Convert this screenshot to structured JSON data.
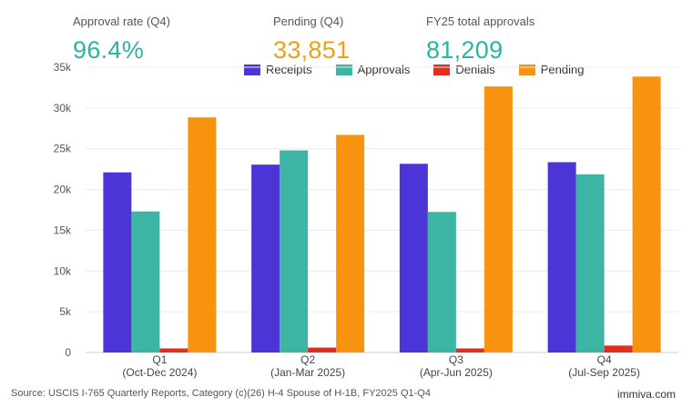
{
  "kpis": [
    {
      "label": "Approval rate (Q4)",
      "value": "96.4%",
      "color": "#2bb5a2"
    },
    {
      "label": "Pending (Q4)",
      "value": "33,851",
      "color": "#f29f14"
    },
    {
      "label": "FY25 total approvals",
      "value": "81,209",
      "color": "#2bb5a2"
    }
  ],
  "chart_data": {
    "type": "bar",
    "categories": [
      {
        "line1": "Q1",
        "line2": "(Oct-Dec 2024)"
      },
      {
        "line1": "Q2",
        "line2": "(Jan-Mar 2025)"
      },
      {
        "line1": "Q3",
        "line2": "(Apr-Jun 2025)"
      },
      {
        "line1": "Q4",
        "line2": "(Jul-Sep 2025)"
      }
    ],
    "series": [
      {
        "name": "Receipts",
        "color": "#4b35d6",
        "values": [
          22100,
          23050,
          23150,
          23350
        ]
      },
      {
        "name": "Approvals",
        "color": "#3db5a4",
        "values": [
          17300,
          24800,
          17250,
          21850
        ]
      },
      {
        "name": "Denials",
        "color": "#e32d1f",
        "values": [
          500,
          600,
          500,
          850
        ]
      },
      {
        "name": "Pending",
        "color": "#f7930f",
        "values": [
          28850,
          26700,
          32650,
          33851
        ]
      }
    ],
    "ylim": [
      0,
      35000
    ],
    "yticks": [
      0,
      5000,
      10000,
      15000,
      20000,
      25000,
      30000,
      35000
    ],
    "ytick_labels": [
      "0",
      "5k",
      "10k",
      "15k",
      "20k",
      "25k",
      "30k",
      "35k"
    ],
    "grid": true,
    "legend_position": "top-center"
  },
  "footer": {
    "source": "Source: USCIS I-765 Quarterly Reports, Category (c)(26) H-4 Spouse of H-1B, FY2025 Q1-Q4",
    "brand": "immiva.com"
  }
}
